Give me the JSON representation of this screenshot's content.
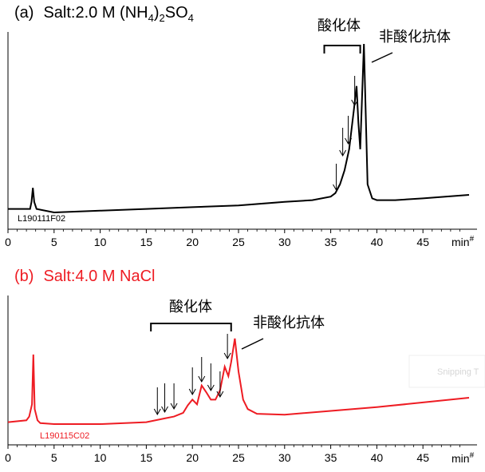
{
  "chart_data": [
    {
      "type": "line",
      "panel_label": "(a)",
      "title": "Salt:2.0 M (NH4)2SO4",
      "title_parts": {
        "label": "(a)",
        "prefix": "Salt:2.0 M (NH",
        "sub1": "4",
        "mid": ")",
        "sub2": "2",
        "rest": "SO",
        "sub3": "4"
      },
      "color": "#000000",
      "xlabel": "min",
      "xlim": [
        0,
        50
      ],
      "xticks": [
        0,
        5,
        10,
        15,
        20,
        25,
        30,
        35,
        40,
        45
      ],
      "sample_id": "L190111F02",
      "annotations": {
        "oxidized": "酸化体",
        "non_oxidized": "非酸化抗体"
      },
      "oxidized_range_min": [
        34.3,
        38.2
      ],
      "arrow_times_min": [
        35.6,
        36.3,
        36.9,
        37.6
      ],
      "grid": false,
      "legend": "none",
      "series": [
        {
          "x": [
            0,
            2.4,
            2.55,
            2.7,
            2.85,
            3.1,
            5,
            10,
            15,
            20,
            25,
            30,
            33,
            35,
            35.5,
            36,
            36.5,
            37,
            37.5,
            37.8,
            38,
            38.2,
            38.4,
            38.6,
            38.8,
            39,
            39.5,
            40,
            42,
            45,
            50
          ],
          "y": [
            0.06,
            0.06,
            0.1,
            0.18,
            0.1,
            0.06,
            0.04,
            0.05,
            0.06,
            0.07,
            0.08,
            0.1,
            0.11,
            0.13,
            0.15,
            0.2,
            0.28,
            0.4,
            0.62,
            0.76,
            0.55,
            0.4,
            0.7,
            1.0,
            0.6,
            0.2,
            0.12,
            0.11,
            0.11,
            0.12,
            0.14
          ]
        }
      ]
    },
    {
      "type": "line",
      "panel_label": "(b)",
      "title": "Salt:4.0 M NaCl",
      "color": "#ee1c23",
      "xlabel": "min",
      "xlim": [
        0,
        50
      ],
      "xticks": [
        0,
        5,
        10,
        15,
        20,
        25,
        30,
        35,
        40,
        45
      ],
      "sample_id": "L190115C02",
      "annotations": {
        "oxidized": "酸化体",
        "non_oxidized": "非酸化抗体"
      },
      "oxidized_range_min": [
        15.5,
        24.2
      ],
      "arrow_times_min": [
        16.2,
        17.0,
        18.0,
        20.0,
        21.0,
        22.0,
        23.0,
        23.8
      ],
      "grid": false,
      "legend": "none",
      "series": [
        {
          "x": [
            0,
            2.0,
            2.3,
            2.6,
            2.75,
            2.9,
            3.2,
            3.5,
            5,
            10,
            15,
            17,
            18,
            19,
            19.5,
            20,
            20.5,
            21,
            21.5,
            22,
            22.5,
            23,
            23.5,
            23.9,
            24.2,
            24.6,
            25,
            25.5,
            26,
            27,
            30,
            35,
            40,
            45,
            50
          ],
          "y": [
            0.06,
            0.08,
            0.12,
            0.25,
            0.78,
            0.2,
            0.08,
            0.05,
            0.04,
            0.04,
            0.06,
            0.1,
            0.12,
            0.16,
            0.24,
            0.3,
            0.25,
            0.45,
            0.38,
            0.3,
            0.3,
            0.4,
            0.65,
            0.55,
            0.7,
            0.95,
            0.6,
            0.3,
            0.2,
            0.15,
            0.14,
            0.18,
            0.22,
            0.27,
            0.32
          ]
        }
      ]
    }
  ],
  "ui": {
    "watermark": "Snipping T",
    "min_unit": "min",
    "min_mark": "#"
  }
}
